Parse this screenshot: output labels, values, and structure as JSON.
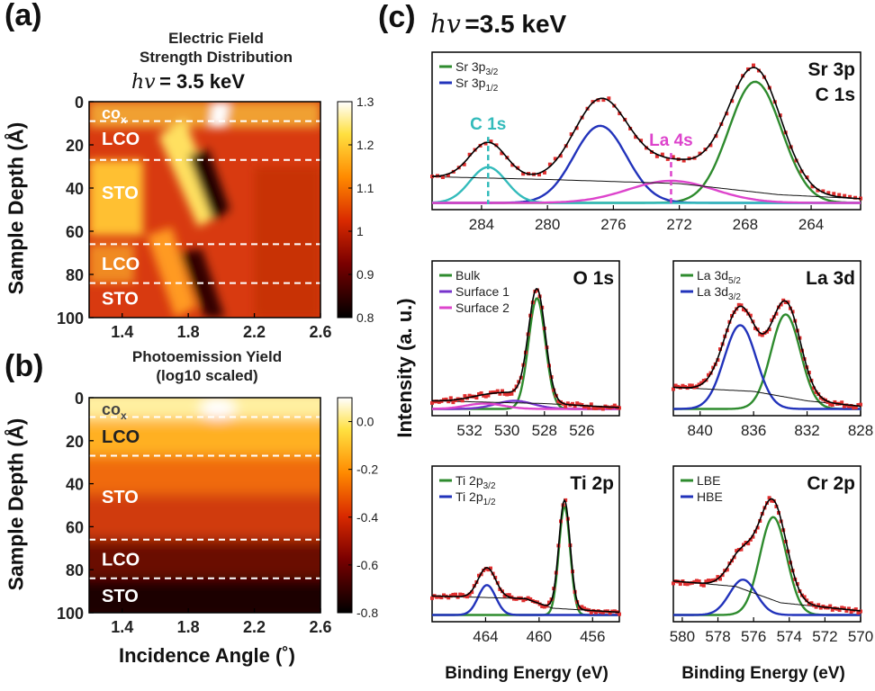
{
  "panels": {
    "a_label": "(a)",
    "b_label": "(b)",
    "c_label": "(c)",
    "a_title_line1": "Electric Field",
    "a_title_line2": "Strength Distribution",
    "b_title_line1": "Photoemission Yield",
    "b_title_line2": "(log10 scaled)",
    "hv_symbol": "hv",
    "hv_value": "= 3.5 keV",
    "hv_c_symbol": "hv",
    "hv_c_value": "=3.5 keV",
    "left_xlabel": "Incidence Angle (˚)",
    "left_ylabel": "Sample Depth (Å)",
    "right_ylabel": "Intensity (a. u.)",
    "right_xlabel_1": "Binding Energy (eV)",
    "right_xlabel_2": "Binding Energy (eV)"
  },
  "chart_data": [
    {
      "type": "heatmap",
      "panel": "a",
      "title": "Electric Field Strength Distribution",
      "xlabel": "Incidence Angle (˚)",
      "ylabel": "Sample Depth (Å)",
      "xlim": [
        1.2,
        2.6
      ],
      "ylim": [
        100,
        0
      ],
      "xticks": [
        1.4,
        1.8,
        2.2,
        2.6
      ],
      "yticks": [
        0,
        20,
        40,
        60,
        80,
        100
      ],
      "colorbar": {
        "ticks": [
          1.3,
          1.2,
          1.1,
          1.0,
          0.9,
          0.8
        ],
        "range": [
          0.8,
          1.3
        ]
      },
      "layer_labels": [
        "CO",
        "LCO",
        "STO",
        "LCO",
        "STO"
      ],
      "layer_sub": "x",
      "layer_label_depths": [
        5,
        17,
        42,
        75,
        91
      ],
      "boundaries": [
        9,
        27,
        66,
        84
      ]
    },
    {
      "type": "heatmap",
      "panel": "b",
      "title": "Photoemission Yield (log10 scaled)",
      "xlabel": "Incidence Angle (˚)",
      "ylabel": "Sample Depth (Å)",
      "xlim": [
        1.2,
        2.6
      ],
      "ylim": [
        100,
        0
      ],
      "xticks": [
        1.4,
        1.8,
        2.2,
        2.6
      ],
      "yticks": [
        0,
        20,
        40,
        60,
        80,
        100
      ],
      "colorbar": {
        "ticks": [
          "0.0",
          "-0.2",
          "-0.4",
          "-0.6",
          "-0.8"
        ],
        "range": [
          -0.8,
          0.1
        ]
      },
      "layer_labels": [
        "CO",
        "LCO",
        "STO",
        "LCO",
        "STO"
      ],
      "layer_sub": "x",
      "layer_label_depths": [
        5,
        18,
        46,
        75,
        92
      ],
      "boundaries": [
        9,
        27,
        66,
        84
      ]
    },
    {
      "type": "line",
      "panel": "Sr3p",
      "labels": [
        "Sr 3p",
        "C 1s"
      ],
      "xlim": [
        287,
        261
      ],
      "xticks": [
        284,
        280,
        276,
        272,
        268,
        264
      ],
      "legend": [
        {
          "name": "Sr 3p",
          "sub": "3/2",
          "color": "#2e8b2e"
        },
        {
          "name": "Sr 3p",
          "sub": "1/2",
          "color": "#2233bb"
        }
      ],
      "annotations": [
        {
          "text": "C 1s",
          "x": 283.6,
          "color": "#33bbbb"
        },
        {
          "text": "La 4s",
          "x": 272.5,
          "color": "#dd44cc"
        }
      ],
      "components": [
        {
          "name": "Sr 3p3/2",
          "color": "#2e8b2e",
          "center": 267.4,
          "amp": 0.88,
          "width": 1.6
        },
        {
          "name": "Sr 3p1/2",
          "color": "#2233bb",
          "center": 276.8,
          "amp": 0.56,
          "width": 1.6
        },
        {
          "name": "C 1s",
          "color": "#33bbbb",
          "center": 283.6,
          "amp": 0.26,
          "width": 1.1
        },
        {
          "name": "La 4s",
          "color": "#dd44cc",
          "center": 272.5,
          "amp": 0.16,
          "width": 2.6
        }
      ],
      "background": [
        [
          287,
          0.2
        ],
        [
          280,
          0.18
        ],
        [
          272,
          0.15
        ],
        [
          266,
          0.07
        ],
        [
          261,
          0.04
        ]
      ]
    },
    {
      "type": "line",
      "panel": "O1s",
      "labels": [
        "O 1s"
      ],
      "xlim": [
        534,
        524
      ],
      "xticks": [
        532,
        530,
        528,
        526
      ],
      "legend": [
        {
          "name": "Bulk",
          "color": "#2e8b2e"
        },
        {
          "name": "Surface 1",
          "color": "#7733cc"
        },
        {
          "name": "Surface 2",
          "color": "#dd44cc"
        }
      ],
      "components": [
        {
          "name": "Bulk",
          "color": "#2e8b2e",
          "center": 528.4,
          "amp": 0.82,
          "width": 0.45
        },
        {
          "name": "Surface 1",
          "color": "#7733cc",
          "center": 529.6,
          "amp": 0.06,
          "width": 1.0
        },
        {
          "name": "Surface 2",
          "color": "#dd44cc",
          "center": 531.2,
          "amp": 0.04,
          "width": 1.0
        }
      ],
      "background": [
        [
          534,
          0.07
        ],
        [
          528,
          0.05
        ],
        [
          524,
          0.02
        ]
      ]
    },
    {
      "type": "line",
      "panel": "La3d",
      "labels": [
        "La 3d"
      ],
      "xlim": [
        842,
        828
      ],
      "xticks": [
        840,
        836,
        832,
        828
      ],
      "legend": [
        {
          "name": "La 3d",
          "sub": "5/2",
          "color": "#2e8b2e"
        },
        {
          "name": "La 3d",
          "sub": "3/2",
          "color": "#2233bb"
        }
      ],
      "components": [
        {
          "name": "La 3d5/2",
          "color": "#2e8b2e",
          "center": 833.6,
          "amp": 0.7,
          "width": 1.1
        },
        {
          "name": "La 3d3/2",
          "color": "#2233bb",
          "center": 837.0,
          "amp": 0.62,
          "width": 1.2
        }
      ],
      "background": [
        [
          842,
          0.17
        ],
        [
          836,
          0.14
        ],
        [
          832,
          0.07
        ],
        [
          828,
          0.03
        ]
      ]
    },
    {
      "type": "line",
      "panel": "Ti2p",
      "labels": [
        "Ti 2p"
      ],
      "xlim": [
        468,
        454
      ],
      "xticks": [
        464,
        460,
        456
      ],
      "legend": [
        {
          "name": "Ti 2p",
          "sub": "3/2",
          "color": "#2e8b2e"
        },
        {
          "name": "Ti 2p",
          "sub": "1/2",
          "color": "#2233bb"
        }
      ],
      "components": [
        {
          "name": "Ti 2p3/2",
          "color": "#2e8b2e",
          "center": 458.1,
          "amp": 0.8,
          "width": 0.42
        },
        {
          "name": "Ti 2p1/2",
          "color": "#2233bb",
          "center": 463.9,
          "amp": 0.22,
          "width": 0.65
        }
      ],
      "background": [
        [
          468,
          0.15
        ],
        [
          461,
          0.13
        ],
        [
          459,
          0.06
        ],
        [
          454,
          0.03
        ]
      ]
    },
    {
      "type": "line",
      "panel": "Cr2p",
      "labels": [
        "Cr 2p"
      ],
      "xlim": [
        580.5,
        570
      ],
      "xticks": [
        580,
        578,
        576,
        574,
        572,
        570
      ],
      "legend": [
        {
          "name": "LBE",
          "color": "#2e8b2e"
        },
        {
          "name": "HBE",
          "color": "#2233bb"
        }
      ],
      "components": [
        {
          "name": "LBE",
          "color": "#2e8b2e",
          "center": 574.9,
          "amp": 0.72,
          "width": 0.75
        },
        {
          "name": "HBE",
          "color": "#2233bb",
          "center": 576.6,
          "amp": 0.26,
          "width": 0.75
        }
      ],
      "background": [
        [
          580.5,
          0.26
        ],
        [
          577,
          0.22
        ],
        [
          574.5,
          0.1
        ],
        [
          570,
          0.04
        ]
      ]
    }
  ]
}
